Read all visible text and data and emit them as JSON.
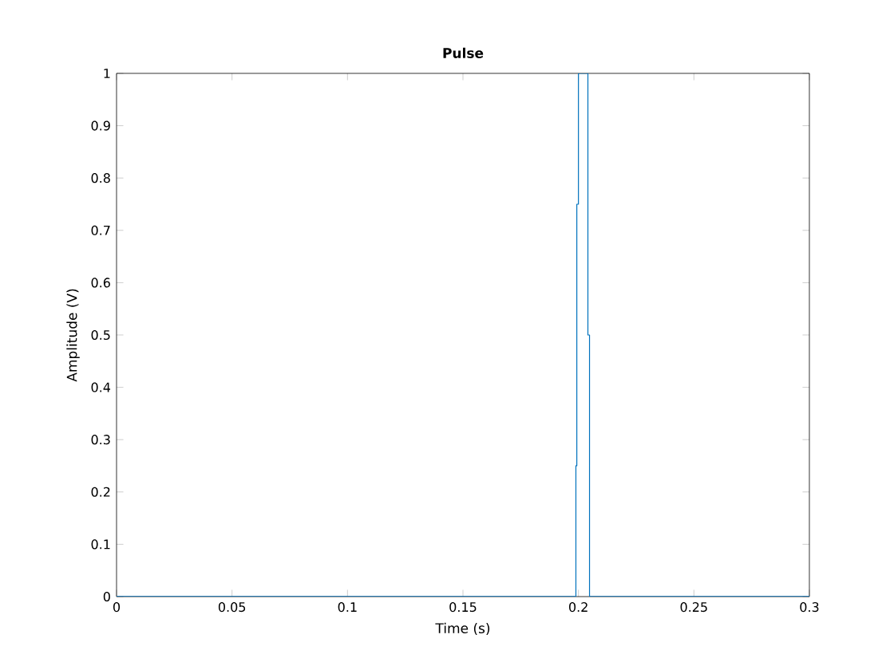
{
  "chart_data": {
    "type": "line",
    "title": "Pulse",
    "xlabel": "Time (s)",
    "ylabel": "Amplitude (V)",
    "x": [
      0,
      0.1989,
      0.1989,
      0.1993,
      0.1993,
      0.2,
      0.2,
      0.2041,
      0.2041,
      0.2048,
      0.2048,
      0.3
    ],
    "series": [
      {
        "color": "#0072bd",
        "values": [
          0,
          0,
          0.25,
          0.25,
          0.75,
          0.75,
          1,
          1,
          0.5,
          0.5,
          0,
          0
        ]
      }
    ],
    "xlim": [
      0,
      0.3
    ],
    "ylim": [
      0,
      1
    ],
    "xticks": [
      0,
      0.05,
      0.1,
      0.15,
      0.2,
      0.25,
      0.3
    ],
    "yticks": [
      0,
      0.1,
      0.2,
      0.3,
      0.4,
      0.5,
      0.6,
      0.7,
      0.8,
      0.9,
      1
    ],
    "grid": false,
    "marker": "none",
    "line_style": "solid"
  }
}
